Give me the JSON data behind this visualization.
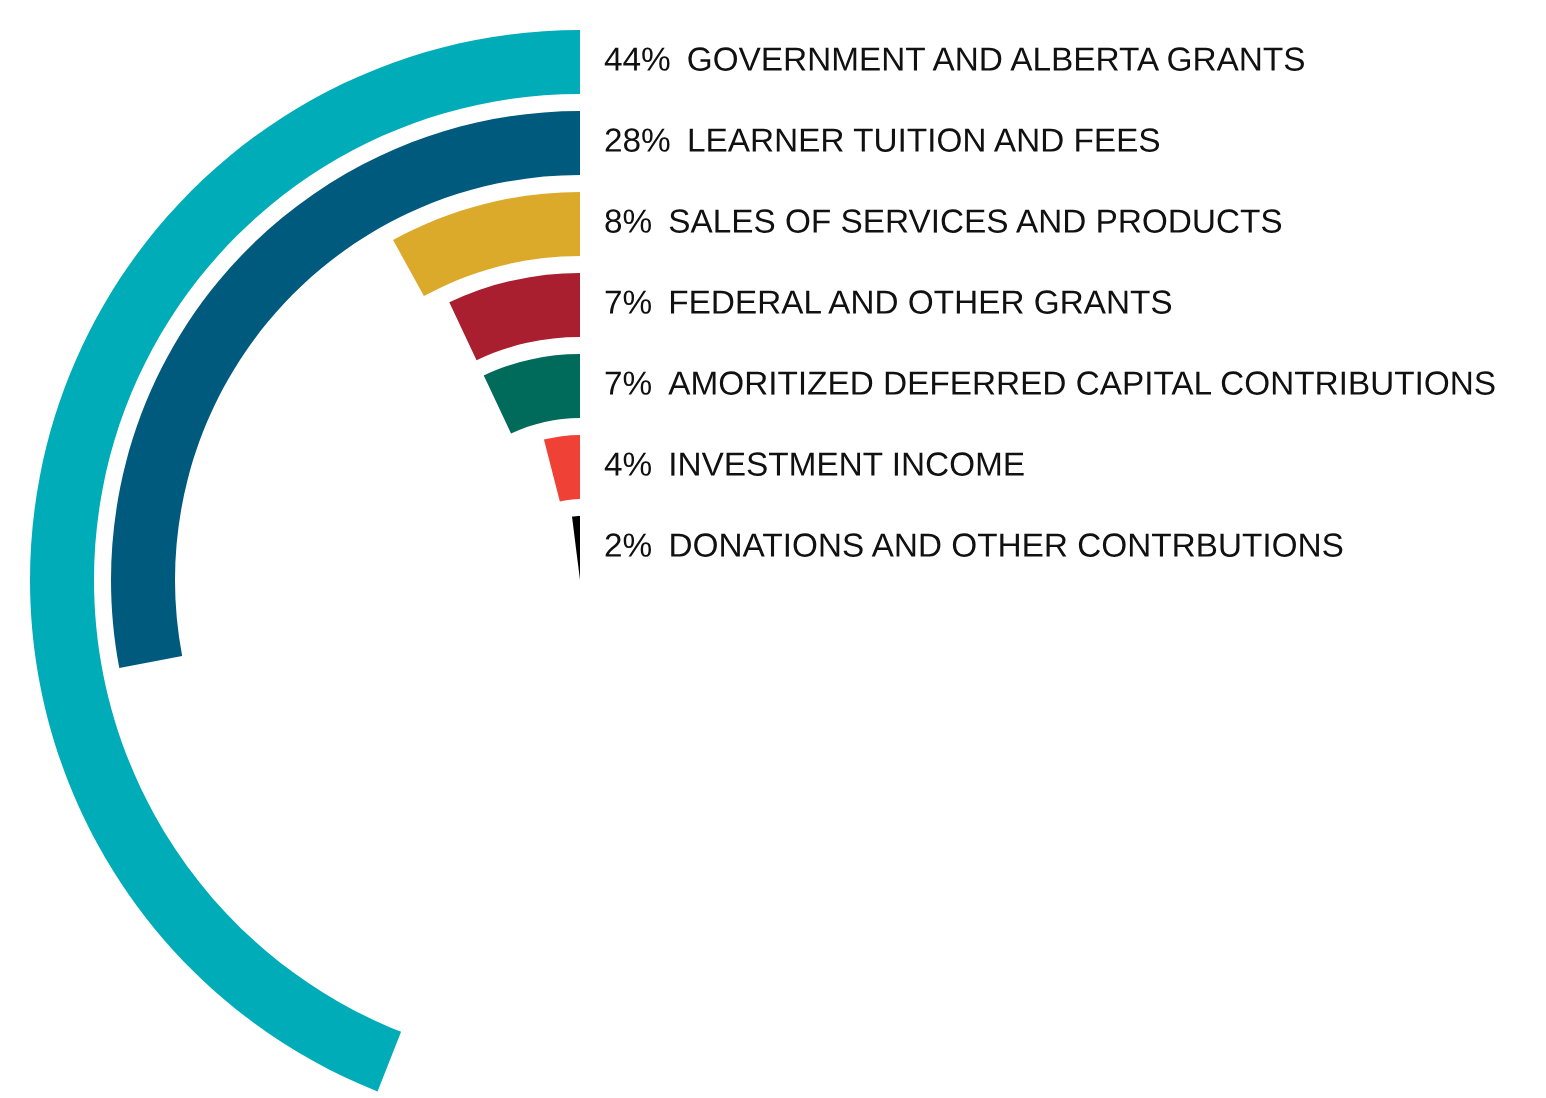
{
  "chart_data": {
    "type": "other",
    "categories": [
      "GOVERNMENT AND ALBERTA GRANTS",
      "LEARNER TUITION AND FEES",
      "SALES OF SERVICES AND PRODUCTS",
      "FEDERAL AND OTHER GRANTS",
      "AMORITIZED DEFERRED CAPITAL CONTRIBUTIONS",
      "INVESTMENT INCOME",
      "DONATIONS AND OTHER CONTRBUTIONS"
    ],
    "values": [
      44,
      28,
      8,
      7,
      7,
      4,
      2
    ],
    "value_labels": [
      "44%",
      "28%",
      "8%",
      "7%",
      "7%",
      "4%",
      "2%"
    ],
    "colors": [
      "#00acb8",
      "#005a7e",
      "#dcaa2a",
      "#a91f2f",
      "#006b5b",
      "#ef4136",
      "#000000"
    ]
  }
}
